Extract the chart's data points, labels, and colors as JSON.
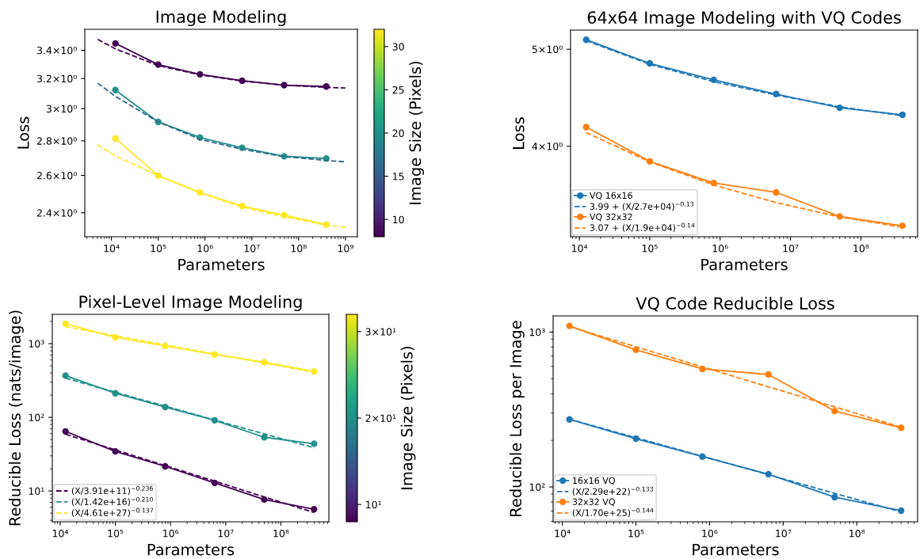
{
  "chart_data": [
    {
      "type": "line",
      "title": "Image Modeling",
      "xlabel": "Parameters",
      "ylabel": "Loss",
      "clabel": "Image Size (Pixels)",
      "clim": [
        8,
        32
      ],
      "cticks": [
        10,
        15,
        20,
        25,
        30
      ],
      "log": "xy",
      "marker": "circle",
      "legend": false,
      "x": [
        12200,
        100000,
        780000,
        6200000,
        49000000,
        390000000
      ],
      "xlim": [
        2700,
        1800000000
      ],
      "xticks": [
        {
          "value": 10000,
          "label": "10⁴"
        },
        {
          "value": 100000,
          "label": "10⁵"
        },
        {
          "value": 1000000,
          "label": "10⁶"
        },
        {
          "value": 10000000,
          "label": "10⁷"
        },
        {
          "value": 100000000,
          "label": "10⁸"
        },
        {
          "value": 1000000000,
          "label": "10⁹"
        }
      ],
      "ylim": [
        2.28,
        3.556
      ],
      "yticks": [
        {
          "value": 2.4,
          "label": "2.4×10⁰"
        },
        {
          "value": 2.6,
          "label": "2.6×10⁰"
        },
        {
          "value": 2.8,
          "label": "2.8×10⁰"
        },
        {
          "value": 3.0,
          "label": "3×10⁰"
        },
        {
          "value": 3.2,
          "label": "3.2×10⁰"
        },
        {
          "value": 3.4,
          "label": "3.4×10⁰"
        }
      ],
      "series": [
        {
          "color": "#440154",
          "values": [
            3.45,
            3.297,
            3.229,
            3.185,
            3.155,
            3.146
          ]
        },
        {
          "color": "#440154",
          "line_style": "dashed",
          "marker": "none",
          "x": [
            5100,
            12200,
            100000,
            780000,
            6200000,
            49000000,
            390000000,
            1000000000
          ],
          "values": [
            3.48,
            3.41,
            3.29,
            3.225,
            3.183,
            3.155,
            3.14,
            3.136
          ]
        },
        {
          "color": "#21918c",
          "values": [
            3.122,
            2.916,
            2.82,
            2.759,
            2.709,
            2.696
          ]
        },
        {
          "color": "#31688e",
          "line_style": "dashed",
          "marker": "none",
          "x": [
            5100,
            12200,
            100000,
            780000,
            6200000,
            49000000,
            390000000,
            1000000000
          ],
          "values": [
            3.168,
            3.08,
            2.916,
            2.81,
            2.75,
            2.707,
            2.685,
            2.677
          ]
        },
        {
          "color": "#fde725",
          "values": [
            2.814,
            2.599,
            2.507,
            2.435,
            2.388,
            2.34
          ]
        },
        {
          "color": "#fde725",
          "line_style": "dashed",
          "marker": "none",
          "x": [
            5100,
            12200,
            100000,
            780000,
            6200000,
            49000000,
            390000000,
            1000000000
          ],
          "values": [
            2.777,
            2.71,
            2.6,
            2.505,
            2.43,
            2.38,
            2.338,
            2.326
          ]
        }
      ]
    },
    {
      "type": "line",
      "title": "64x64 Image Modeling with VQ Codes",
      "xlabel": "Parameters",
      "ylabel": "Loss",
      "log": "xy",
      "marker": "circle",
      "legend": "bottom left",
      "x": [
        12500,
        100000,
        810000,
        6250000,
        50000000,
        390000000
      ],
      "xlim": [
        7500,
        640000000
      ],
      "xticks": [
        {
          "value": 10000,
          "label": "10⁴"
        },
        {
          "value": 100000,
          "label": "10⁵"
        },
        {
          "value": 1000000,
          "label": "10⁶"
        },
        {
          "value": 10000000,
          "label": "10⁷"
        },
        {
          "value": 100000000,
          "label": "10⁸"
        }
      ],
      "ylim": [
        3.248,
        5.225
      ],
      "yticks": [
        {
          "value": 4,
          "label": "4×10⁰"
        },
        {
          "value": 5,
          "label": "5×10⁰"
        }
      ],
      "series": [
        {
          "name": "VQ 16x16",
          "color": "#1f77b4",
          "values": [
            5.11,
            4.84,
            4.66,
            4.51,
            4.37,
            4.3
          ]
        },
        {
          "name": "3.99 + (X/2.7e+04)$^{−0.13}$",
          "color": "#1f77b4",
          "line_style": "dashed",
          "marker": "none",
          "values": [
            5.1,
            4.83,
            4.64,
            4.5,
            4.38,
            4.29
          ]
        },
        {
          "name": "VQ 32x32",
          "color": "#ff7f0e",
          "values": [
            4.18,
            3.863,
            3.676,
            3.597,
            3.403,
            3.331
          ]
        },
        {
          "name": "3.07 + (X/1.9e+04)$^{−0.14}$",
          "color": "#ff7f0e",
          "line_style": "dashed",
          "marker": "none",
          "values": [
            4.127,
            3.86,
            3.659,
            3.513,
            3.4,
            3.32
          ]
        }
      ]
    },
    {
      "type": "line",
      "title": "Pixel-Level Image Modeling",
      "xlabel": "Parameters",
      "ylabel": "Reducible Loss (nats/image)",
      "clabel": "Image Size (Pixels)",
      "clim": [
        8,
        32
      ],
      "cticks": [
        {
          "value": 10,
          "label": "10¹"
        },
        {
          "value": 20,
          "label": "2×10¹"
        },
        {
          "value": 30,
          "label": "3×10¹"
        }
      ],
      "log": "xy",
      "marker": "circle",
      "legend": "bottom left",
      "x": [
        12500,
        100000,
        800000,
        6300000,
        50000000,
        400000000
      ],
      "xlim": [
        7200,
        740000000
      ],
      "xticks": [
        {
          "value": 10000,
          "label": "10⁴"
        },
        {
          "value": 100000,
          "label": "10⁵"
        },
        {
          "value": 1000000,
          "label": "10⁶"
        },
        {
          "value": 10000000,
          "label": "10⁷"
        },
        {
          "value": 100000000,
          "label": "10⁸"
        }
      ],
      "ylim": [
        3.82,
        2500
      ],
      "yticks": [
        {
          "value": 10,
          "label": "10¹"
        },
        {
          "value": 100,
          "label": "10²"
        },
        {
          "value": 1000,
          "label": "10³"
        }
      ],
      "series": [
        {
          "color": "#440154",
          "values": [
            64.4,
            34.5,
            21.6,
            12.9,
            7.66,
            5.66
          ]
        },
        {
          "name": "(X/3.91e+11)$^{−0.236}$",
          "color": "#440154",
          "line_style": "dashed",
          "marker": "none",
          "values": [
            59,
            36.1,
            22.1,
            13.6,
            8.3,
            5.1
          ]
        },
        {
          "color": "#21918c",
          "values": [
            368,
            212,
            138,
            91.2,
            53.6,
            43.8
          ]
        },
        {
          "name": "(X/1.42e+16)$^{−0.210}$",
          "color": "#21918c",
          "line_style": "dashed",
          "marker": "none",
          "values": [
            340,
            219,
            142,
            92,
            59.6,
            38.5
          ]
        },
        {
          "color": "#fde725",
          "values": [
            1866,
            1214,
            930,
            713,
            561,
            419
          ]
        },
        {
          "name": "(X/4.61e+27)$^{−0.137}$",
          "color": "#fde725",
          "line_style": "dashed",
          "marker": "none",
          "values": [
            1700,
            1277,
            962,
            725,
            546,
            410
          ]
        }
      ]
    },
    {
      "type": "line",
      "title": "VQ Code Reducible Loss",
      "xlabel": "Parameters",
      "ylabel": "Reducible Loss per Image",
      "log": "xy",
      "marker": "circle",
      "legend": "bottom left",
      "x": [
        12500,
        100000,
        800000,
        6300000,
        50000000,
        400000000
      ],
      "xlim": [
        7500,
        670000000
      ],
      "xticks": [
        {
          "value": 10000,
          "label": "10⁴"
        },
        {
          "value": 100000,
          "label": "10⁵"
        },
        {
          "value": 1000000,
          "label": "10⁶"
        },
        {
          "value": 10000000,
          "label": "10⁷"
        },
        {
          "value": 100000000,
          "label": "10⁸"
        }
      ],
      "ylim": [
        59.6,
        1271
      ],
      "yticks": [
        {
          "value": 100,
          "label": "10²"
        },
        {
          "value": 1000,
          "label": "10³"
        }
      ],
      "series": [
        {
          "name": "16x16 VQ",
          "color": "#1f77b4",
          "values": [
            273,
            205,
            157,
            121,
            85.9,
            70.3
          ]
        },
        {
          "name": "(X/2.29e+22)$^{−0.133}$",
          "color": "#1f77b4",
          "line_style": "dashed",
          "marker": "none",
          "values": [
            274,
            208,
            158,
            120,
            91,
            69
          ]
        },
        {
          "name": "32x32 VQ",
          "color": "#ff7f0e",
          "values": [
            1096,
            767,
            578,
            532,
            309,
            241
          ]
        },
        {
          "name": "(X/1.70e+25)$^{−0.144}$",
          "color": "#ff7f0e",
          "line_style": "dashed",
          "marker": "none",
          "values": [
            1084,
            803,
            596,
            443,
            329,
            243
          ]
        }
      ]
    }
  ]
}
